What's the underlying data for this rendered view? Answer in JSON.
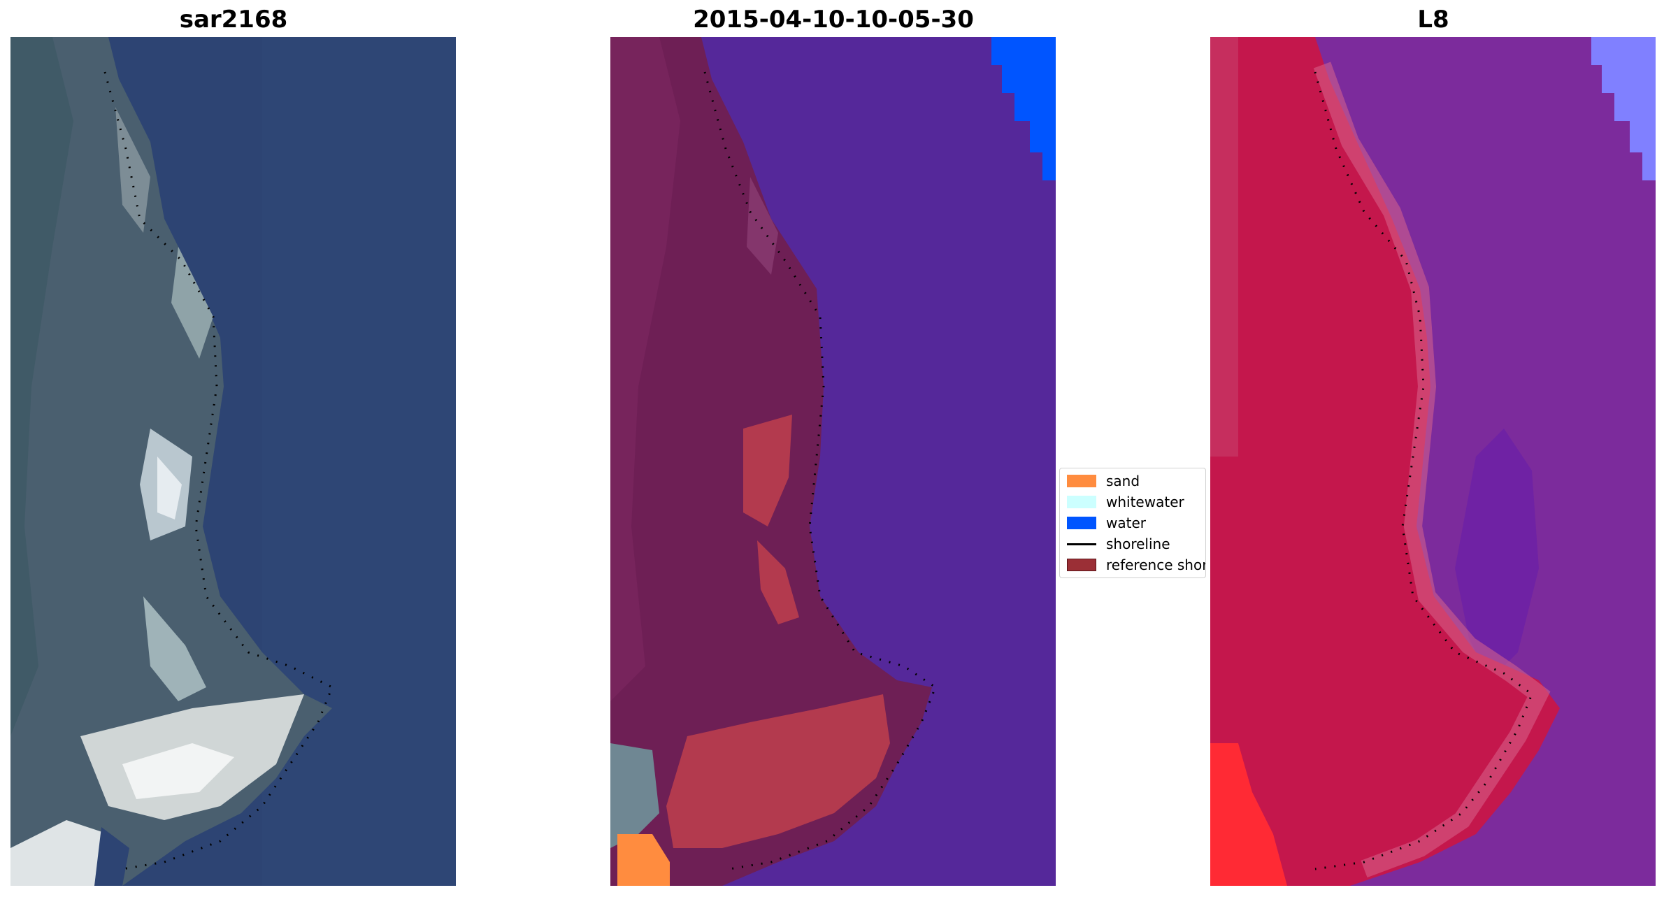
{
  "panels": [
    {
      "title": "sar2168"
    },
    {
      "title": "2015-04-10-10-05-30"
    },
    {
      "title": "L8"
    }
  ],
  "legend": {
    "items": [
      {
        "label": "sand",
        "color": "#ff8c3f"
      },
      {
        "label": "whitewater",
        "color": "#ccffff"
      },
      {
        "label": "water",
        "color": "#0055ff"
      },
      {
        "label": "shoreline",
        "color": "#000000"
      },
      {
        "label": "reference shoreline",
        "color": "#9b2f36"
      }
    ]
  },
  "colors": {
    "rgb_water": "#2d4473",
    "rgb_land": "#4a5f6f",
    "class_water": "#55289a",
    "class_land": "#6e1f55",
    "class_wet": "#b33a4e",
    "ndwi_water": "#7c2b9c",
    "ndwi_land": "#c4174c",
    "ndwi_bright": "#ff2a34",
    "ndwi_sea_corner": "#8080ff"
  }
}
